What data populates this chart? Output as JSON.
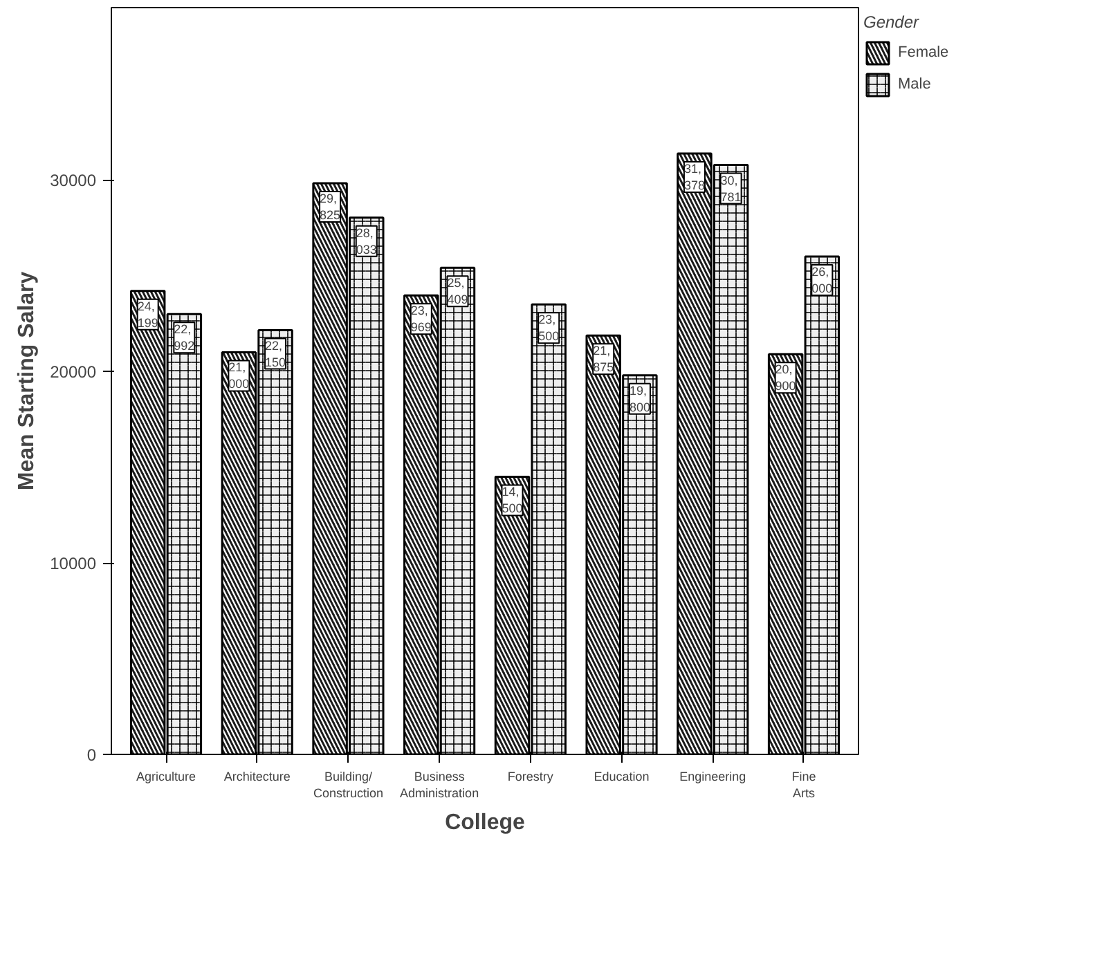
{
  "chart_data": {
    "type": "bar",
    "xlabel": "College",
    "ylabel": "Mean Starting Salary",
    "legend_title": "Gender",
    "legend": "top right",
    "grid": false,
    "categories": [
      "Agriculture",
      "Architecture",
      "Building/Construction",
      "Business Administration",
      "Forestry",
      "Education",
      "Engineering",
      "Fine Arts"
    ],
    "ylim": [
      0,
      39000
    ],
    "yticks": [
      0,
      10000,
      20000,
      30000
    ],
    "series": [
      {
        "name": "Female",
        "color": "#1a1a1a",
        "values": [
          24199,
          21000,
          29825,
          23969,
          14500,
          21875,
          31378,
          20900
        ],
        "value_labels": [
          "24,199",
          "21,000",
          "29,825",
          "23,969",
          "14,500",
          "21,875",
          "31,378",
          "20,900"
        ]
      },
      {
        "name": "Male",
        "color": "#eeeeee",
        "values": [
          22992,
          22150,
          28033,
          25409,
          23500,
          19800,
          30781,
          26000
        ],
        "value_labels": [
          "22,992",
          "22,150",
          "28,033",
          "25,409",
          "23,500",
          "19,800",
          "30,781",
          "26,000"
        ]
      }
    ]
  }
}
